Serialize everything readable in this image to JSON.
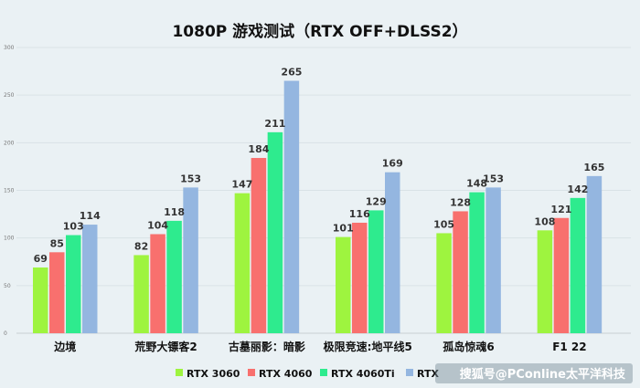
{
  "chart_data": {
    "type": "bar",
    "title": "1080P 游戏测试（RTX OFF+DLSS2）",
    "categories": [
      "边境",
      "荒野大镖客2",
      "古墓丽影：暗影",
      "极限竞速:地平线5",
      "孤岛惊魂6",
      "F1 22"
    ],
    "series": [
      {
        "name": "RTX 3060",
        "color": "#9ef43f",
        "values": [
          69,
          82,
          147,
          101,
          105,
          108
        ]
      },
      {
        "name": "RTX 4060",
        "color": "#f8706e",
        "values": [
          85,
          104,
          184,
          116,
          128,
          121
        ]
      },
      {
        "name": "RTX 4060Ti",
        "color": "#2eeb8e",
        "values": [
          103,
          118,
          211,
          129,
          148,
          142
        ]
      },
      {
        "name": "RTX",
        "color": "#94b6e0",
        "values": [
          114,
          153,
          265,
          169,
          153,
          165
        ]
      }
    ],
    "ylim": [
      0,
      300
    ],
    "yticks": [
      0,
      50,
      100,
      150,
      200,
      250,
      300
    ],
    "grid": true,
    "legend": "bottom"
  },
  "watermark": "搜狐号@PConline太平洋科技"
}
